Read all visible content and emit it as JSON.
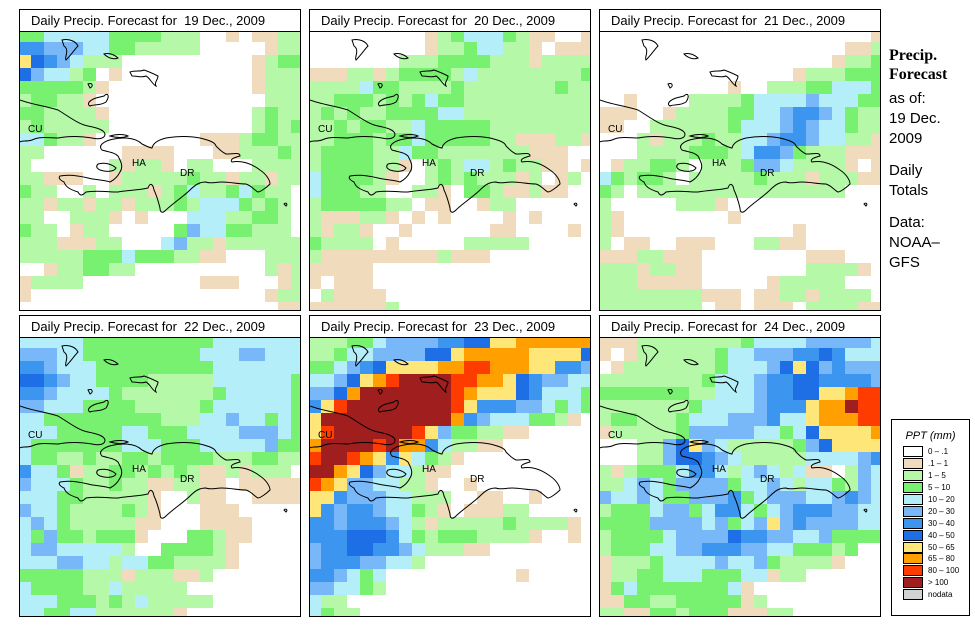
{
  "side": {
    "heading1": "Precip.",
    "heading2": "Forecast",
    "as_of_label": "as of:",
    "as_of_date1": "19 Dec.",
    "as_of_date2": "2009",
    "totals1": "Daily",
    "totals2": "Totals",
    "data_label": "Data:",
    "data_source1": "NOAA–",
    "data_source2": "GFS"
  },
  "legend": {
    "title": "PPT (mm)",
    "items": [
      {
        "code": "w",
        "label": "0 – .1",
        "color": "#ffffff"
      },
      {
        "code": "t",
        "label": ".1 – 1",
        "color": "#f0dcbc"
      },
      {
        "code": "l",
        "label": "1 – 5",
        "color": "#b4f8a8"
      },
      {
        "code": "g",
        "label": "5 – 10",
        "color": "#78f070"
      },
      {
        "code": "c",
        "label": "10 – 20",
        "color": "#b4eef8"
      },
      {
        "code": "s",
        "label": "20 – 30",
        "color": "#78b8f8"
      },
      {
        "code": "b",
        "label": "30 – 40",
        "color": "#3c96f0"
      },
      {
        "code": "d",
        "label": "40 – 50",
        "color": "#1e6ee6"
      },
      {
        "code": "y",
        "label": "50 – 65",
        "color": "#ffe678"
      },
      {
        "code": "o",
        "label": "65 – 80",
        "color": "#ffa000"
      },
      {
        "code": "r",
        "label": "80 – 100",
        "color": "#ff3c00"
      },
      {
        "code": "m",
        "label": "> 100",
        "color": "#a01e1e"
      },
      {
        "code": "n",
        "label": "nodata",
        "color": "#d2d2d2"
      }
    ]
  },
  "place_labels": [
    "CU",
    "HA",
    "DR"
  ],
  "panels": [
    {
      "title": "Daily Precip. Forecast for  19 Dec., 2009",
      "grid": [
        "ggcccccgggglllwwtwttll",
        "bbsssccgglllllwwwwwtll",
        "ydbsclllwwwwwwwwwwtlgg",
        "dscclgwtwwwwwwwwwwtlll",
        "gggggltwwwwwwwwwwwtlll",
        "lgglltwwwwwwwwwwwwwlll",
        "gglllltwwwwwwwwwwwlgll",
        "lglllllwwwwwwwwwwwlglg",
        "ccglltwwwwwwwwtttlggll",
        "llwwwwwwttttwwwttlllgl",
        "lwwwwwwltlltwllwwwllll",
        "lltttwwtlllllglltlltll",
        "gllwwlwllltlgcllgcgllw",
        "lltlltlltlllglcccglglw",
        "llwwllltwtwwwcccllgglw",
        "gllwtllwwwwwgsccgglll",
        "llltttllwwwcslltllllll",
        "lllllgggcgggllttwwwlll",
        "wwtllggllwwwwwwwwwwltl",
        "tllllwwwwwwwwwtttwwwtl",
        "twwwwwwwwwwwwwwwwwwtll",
        "wwwwwwwwwwwwwwwwwwwwtt"
      ]
    },
    {
      "title": "Daily Precip. Forecast for  20 Dec., 2009",
      "grid": [
        "wwwwwwwwwtlgcccglttwwt",
        "wwwwwwwwwtllgcclltwtttl",
        "wwwwwwwlllggggllltllllg",
        "tttlltlgggglcllllllllgl",
        "llllcggllllglllllllglll",
        "llggglglgcgglllllllllll",
        "lglgllggggcclllllllllllt",
        "llglggllcggggglllllllll",
        "llggglggcggggglltttllt",
        "lggggllcggllllllltttwww",
        "lgggglltwlglcclgllttwtt",
        "cggggltwwlglgllltlwtlww",
        "cgggllwwlltwgglttlttww",
        "lgggggllwttwwtllwwwwww",
        "ltttlltwtwtwwwwtwtwwwww",
        "ltlltwwtwwwwwwttwwwwtw",
        "gllllwtwwwwwlllllwwwww",
        "ltttttttttltttwwwwwwwww",
        "tttttwwwwwwwwwwwwwwwwww",
        "twtttwwwwwwwwwwwwwwwww",
        "wlttttwwwwwwwwwwwwwwww",
        "ttttttlwwwwwwwwwwwwwwww"
      ]
    },
    {
      "title": "Daily Precip. Forecast for  21 Dec., 2009",
      "grid": [
        "wwwwwwwwwwwwwwwwwwwwwt",
        "wwwwwwwwwwwwwwwwwwwttl",
        "wwwwwwwwwwwwwwwwwwtllg",
        "wwwwwwwwwwwwwwwtlllggg",
        "wwwwwwwwwwtwwlllggcccg",
        "wwtwwwwllllgccccscccgg",
        "tttwwtllllggccsbbscglll",
        "ttwwllllllgcccsbsccgllt",
        "wwwltlllgllccsbbsccllttw",
        "wwwllllggglcbbsglllttt",
        "wtllgglwlllgssclllltwt",
        "cglgglwlllllgllltllltt",
        "glwllllllllllllllllwwww",
        "lwwwwwllltwwwwwwwwwww",
        "ltwwwwwwwwtwwwwwwwwww",
        "ltwwwwwwwwwwwwwtwwwwww",
        "lwttwwtttwwwllttwwwwww",
        "tttlltttwwwwwwwwtttwww",
        "llltllttwwwwwwwwlllltw",
        "llltttttwwwwwtlllllwww",
        "lllllllltttwttlltllllw",
        "llllllllwttwtttwlllltt"
      ]
    },
    {
      "title": "Daily Precip. Forecast for  22 Dec., 2009",
      "grid": [
        "cccccggggggggggcccccccc",
        "sssccgggggggggcccsscccc",
        "bbscccgggggggggcccccccc",
        "ddbsccgggglllllccccccgg",
        "bbsccccglllllllgcccccgg",
        "sscccgggglllllgccccccgc",
        "ccggggggggglllccsccgcgg",
        "cccgggggccgggccccssscgl",
        "cgggggggcccgggcccccsggt",
        "cggllgllgglgggglllgglll",
        "bccgtllgglglglttltlll",
        "scccgllgllttllttwtttttt",
        "cccggllllltwwlttwwtttt",
        "sccgllllgltwwwtttwwwww",
        "cscglllllttwwwttttwwww",
        "cgsgglgggtwwwgglttwwww",
        "cssccccclwwggggltwwwwww",
        "cccsscclccgglllltwwwww",
        "gggggllltlllttlwwwwww",
        "cggggllclllllwwwwwwww",
        "cccggglglclllllwwwwwww",
        "ccggcclllllltwwwwwwww"
      ]
    },
    {
      "title": "Daily Precip. Forecast for  23 Dec., 2009",
      "grid": [
        "lllggcssssbbddyyoooooo",
        "llgccssssddyoooooyyyyd",
        "ggcsbdyyyyoorroooyybbs",
        "ccsdyormmmmrrooydbsscc",
        "ssdommmmmmmroyyydbcccg",
        "byrmmmmmmmmrybbbsscgcg",
        "ymmmmmmmmmmobscccgglt",
        "yrmmmmmmrysggllttwwww",
        "ommmmrmoobcllttwwwwwww",
        "rmmroybycgltwwwwwwwwww",
        "mmoydscclttwwwwwwwwwww",
        "roysscclltwwtwwwwwwwww",
        "yybssscclllwwttwwtwwww",
        "ybsbbsccgltwtttllwwwww",
        "bbsbbbscltlllllglllltw",
        "bbbdddbcglggglllltwwtw",
        "sbbddbbsclllttwwwwwwww",
        "sbbbsscclwwwwwwwwwwww",
        "bbscgcwwwwwwwwwwtwwwww",
        "ssccglwwwwwwwwwwwwwwww",
        "cllwwwwwwwwwwwwwwwwww",
        "cgllwwwwwwwwwwwwwwwwww"
      ]
    },
    {
      "title": "Daily Precip. Forecast for  24 Dec., 2009",
      "grid": [
        "tttllllllllgccccssssscc",
        "twtllllllgccsssbbdbcccc",
        "wtlllllllgcccsdydsbssss",
        "llllllllgcccsbbddbbbbs",
        "gggggggllcccsbbddyyorr",
        "lllllllgccccsbbbyoomrr",
        "lgglllgcccsssbccyooorr",
        "tlllllgsssssccgcdyyyyo",
        "wwwllsdysclllllgsdyyyy",
        "wwwllsddbsclllllccccsb",
        "ltlgggcbbclcsclcttwlsc",
        "llcscgssssgccsclccglsc",
        "sccscggsssbgcsssccsbsc",
        "lgggcssgcbbcgcsbbbssccc",
        "ggggsssscsgcsysbsssscc",
        "lggggcssssdbbssccsgggg",
        "lgggccssbbbssccggglgw",
        "tlllgccccsccsglllltwww",
        "tllggcccgggcctllwwwww",
        "tgcgggggggctwwwwwwwww",
        "ttggllgggggtlwwwwwwww",
        "llttgglgggtttllwwwwww"
      ]
    }
  ]
}
